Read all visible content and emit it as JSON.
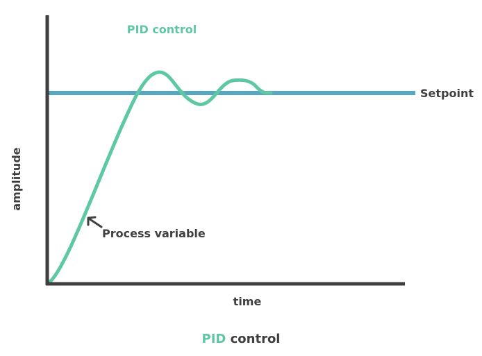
{
  "diagram": {
    "inner_title": "PID control",
    "setpoint_label": "Setpoint",
    "process_variable_label": "Process variable",
    "x_axis_label": "time",
    "y_axis_label": "amplitude"
  },
  "caption": {
    "accent": "PID",
    "rest": " control"
  },
  "colors": {
    "axis": "#3f3f3f",
    "setpoint": "#58a7c1",
    "process_variable": "#5ec8a4",
    "text": "#3f3f3f",
    "accent": "#5ec8a4"
  }
}
